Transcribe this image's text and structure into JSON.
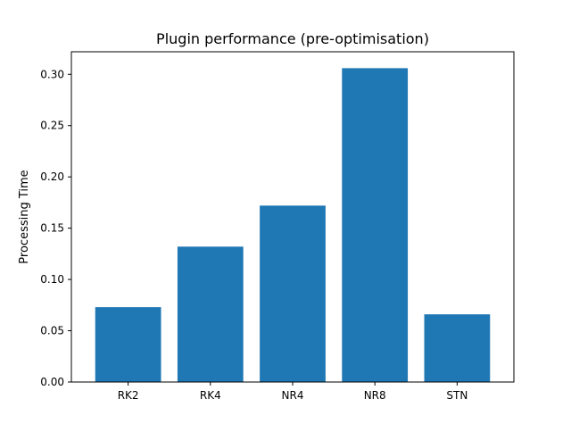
{
  "chart_data": {
    "type": "bar",
    "title": "Plugin performance (pre-optimisation)",
    "xlabel": "",
    "ylabel": "Processing Time",
    "categories": [
      "RK2",
      "RK4",
      "NR4",
      "NR8",
      "STN"
    ],
    "values": [
      0.073,
      0.132,
      0.172,
      0.306,
      0.066
    ],
    "ylim": [
      0,
      0.322
    ],
    "yticks": [
      0.0,
      0.05,
      0.1,
      0.15,
      0.2,
      0.25,
      0.3
    ],
    "ytick_labels": [
      "0.00",
      "0.05",
      "0.10",
      "0.15",
      "0.20",
      "0.25",
      "0.30"
    ],
    "grid": false,
    "legend": "none",
    "bar_color": "#1f77b4"
  }
}
